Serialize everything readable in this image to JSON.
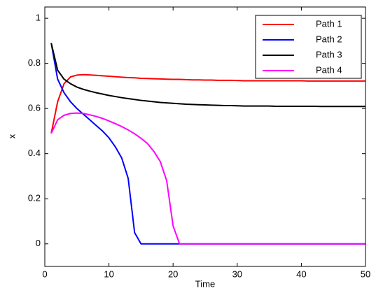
{
  "chart_data": {
    "type": "line",
    "x_label": "Time",
    "y_label": "x",
    "x": [
      1,
      2,
      3,
      4,
      5,
      6,
      7,
      8,
      9,
      10,
      11,
      12,
      13,
      14,
      15,
      16,
      17,
      18,
      19,
      20,
      21,
      22,
      23,
      24,
      25,
      26,
      27,
      28,
      29,
      30,
      31,
      32,
      33,
      34,
      35,
      36,
      37,
      38,
      39,
      40,
      41,
      42,
      43,
      44,
      45,
      46,
      47,
      48,
      49,
      50
    ],
    "series": [
      {
        "name": "Path 1",
        "color": "#ff0000",
        "values": [
          0.49,
          0.63,
          0.71,
          0.74,
          0.748,
          0.75,
          0.749,
          0.747,
          0.745,
          0.743,
          0.741,
          0.739,
          0.737,
          0.736,
          0.734,
          0.733,
          0.732,
          0.731,
          0.73,
          0.729,
          0.729,
          0.728,
          0.727,
          0.727,
          0.726,
          0.726,
          0.725,
          0.725,
          0.725,
          0.724,
          0.723,
          0.723,
          0.723,
          0.723,
          0.723,
          0.723,
          0.723,
          0.723,
          0.723,
          0.723,
          0.722,
          0.722,
          0.722,
          0.722,
          0.722,
          0.722,
          0.722,
          0.722,
          0.722,
          0.722
        ]
      },
      {
        "name": "Path 2",
        "color": "#0000ff",
        "values": [
          0.89,
          0.73,
          0.67,
          0.63,
          0.6,
          0.575,
          0.55,
          0.525,
          0.5,
          0.47,
          0.43,
          0.38,
          0.29,
          0.05,
          0,
          0,
          0,
          0,
          0,
          0,
          0,
          0,
          0,
          0,
          0,
          0,
          0,
          0,
          0,
          0,
          0,
          0,
          0,
          0,
          0,
          0,
          0,
          0,
          0,
          0,
          0,
          0,
          0,
          0,
          0,
          0,
          0,
          0,
          0,
          0
        ]
      },
      {
        "name": "Path 3",
        "color": "#000000",
        "values": [
          0.89,
          0.77,
          0.73,
          0.71,
          0.695,
          0.685,
          0.677,
          0.67,
          0.664,
          0.658,
          0.653,
          0.648,
          0.644,
          0.64,
          0.636,
          0.633,
          0.63,
          0.627,
          0.625,
          0.623,
          0.621,
          0.619,
          0.618,
          0.617,
          0.616,
          0.615,
          0.614,
          0.613,
          0.613,
          0.612,
          0.611,
          0.611,
          0.611,
          0.611,
          0.611,
          0.61,
          0.61,
          0.61,
          0.61,
          0.61,
          0.61,
          0.61,
          0.609,
          0.609,
          0.609,
          0.609,
          0.609,
          0.609,
          0.609,
          0.609
        ]
      },
      {
        "name": "Path 4",
        "color": "#ff00ff",
        "values": [
          0.49,
          0.55,
          0.57,
          0.578,
          0.58,
          0.578,
          0.572,
          0.565,
          0.556,
          0.545,
          0.533,
          0.52,
          0.505,
          0.488,
          0.468,
          0.445,
          0.41,
          0.365,
          0.28,
          0.08,
          0,
          0,
          0,
          0,
          0,
          0,
          0,
          0,
          0,
          0,
          0,
          0,
          0,
          0,
          0,
          0,
          0,
          0,
          0,
          0,
          0,
          0,
          0,
          0,
          0,
          0,
          0,
          0,
          0,
          0
        ]
      }
    ],
    "xlim": [
      0,
      50
    ],
    "ylim": [
      -0.1,
      1.05
    ],
    "xticks": [
      0,
      10,
      20,
      30,
      40,
      50
    ],
    "yticks": [
      0,
      0.2,
      0.4,
      0.6,
      0.8,
      1
    ],
    "legend": "upper right"
  }
}
